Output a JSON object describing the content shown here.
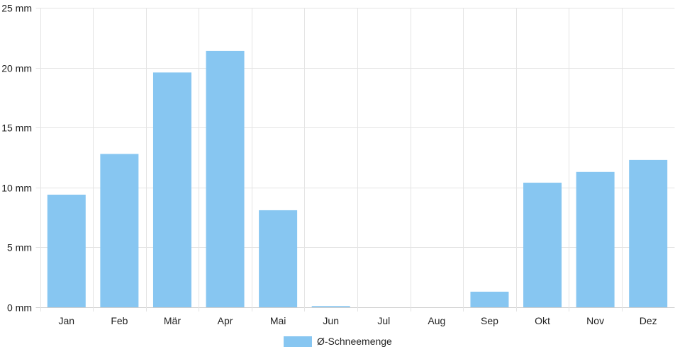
{
  "chart_data": {
    "type": "bar",
    "categories": [
      "Jan",
      "Feb",
      "Mär",
      "Apr",
      "Mai",
      "Jun",
      "Jul",
      "Aug",
      "Sep",
      "Okt",
      "Nov",
      "Dez"
    ],
    "series": [
      {
        "name": "Ø-Schneemenge",
        "values": [
          9.4,
          12.8,
          19.6,
          21.4,
          8.1,
          0.1,
          0,
          0,
          1.3,
          10.4,
          11.3,
          12.3
        ],
        "color": "#87c6f1"
      }
    ],
    "y_ticks": [
      "0 mm",
      "5 mm",
      "10 mm",
      "15 mm",
      "20 mm",
      "25 mm"
    ],
    "unit": "mm",
    "ylim": [
      0,
      25
    ],
    "grid": true,
    "legend_position": "bottom"
  }
}
